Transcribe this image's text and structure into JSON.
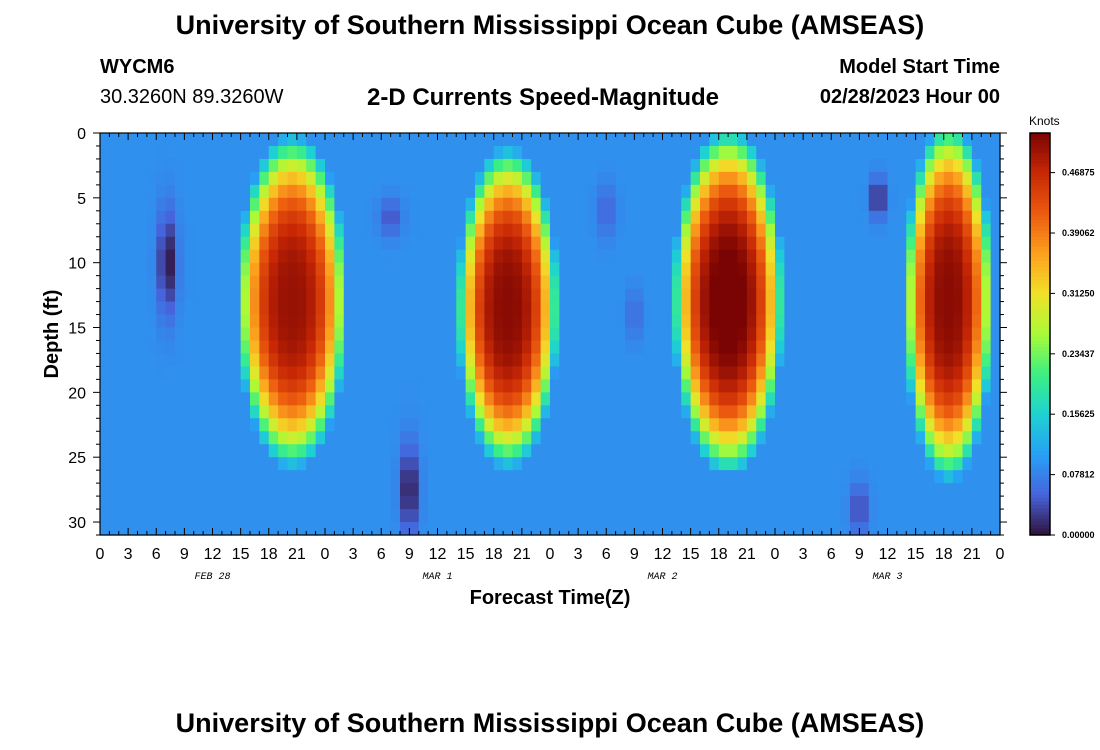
{
  "header": {
    "title": "University of Southern Mississippi Ocean Cube (AMSEAS)",
    "station_id": "WYCM6",
    "coordinates": "30.3260N  89.3260W",
    "start_label": "Model Start Time",
    "start_value": "02/28/2023 Hour 00"
  },
  "footer": {
    "title": "University of Southern Mississippi Ocean Cube (AMSEAS)"
  },
  "chart_data": {
    "type": "heatmap",
    "title": "2-D Currents Speed-Magnitude",
    "xlabel": "Forecast Time(Z)",
    "ylabel": "Depth (ft)",
    "x_hours_range": [
      0,
      96
    ],
    "y_depth_range": [
      0,
      31
    ],
    "x_tick_labels": [
      "0",
      "3",
      "6",
      "9",
      "12",
      "15",
      "18",
      "21",
      "0",
      "3",
      "6",
      "9",
      "12",
      "15",
      "18",
      "21",
      "0",
      "3",
      "6",
      "9",
      "12",
      "15",
      "18",
      "21",
      "0",
      "3",
      "6",
      "9",
      "12",
      "15",
      "18",
      "21",
      "0"
    ],
    "y_tick_values": [
      0,
      5,
      10,
      15,
      20,
      25,
      30
    ],
    "day_labels": [
      {
        "label": "FEB 28",
        "hour": 12
      },
      {
        "label": "MAR 1",
        "hour": 36
      },
      {
        "label": "MAR 2",
        "hour": 60
      },
      {
        "label": "MAR 3",
        "hour": 84
      }
    ],
    "colorbar": {
      "unit": "Knots",
      "min": 0.0,
      "max": 0.52,
      "tick_values": [
        0.0,
        0.078125,
        0.15625,
        0.234375,
        0.3125,
        0.390625,
        0.46875
      ],
      "tick_labels": [
        "0.00000",
        "0.07812",
        "0.15625",
        "0.23437",
        "0.31250",
        "0.39062",
        "0.46875"
      ]
    },
    "grid_resolution": {
      "time_steps": 96,
      "depth_levels": 31
    },
    "background_speed_knots": 0.09,
    "high_speed_blobs": [
      {
        "center_hour": 20.5,
        "center_depth_ft": 13,
        "half_width_hours": 6.0,
        "half_depth_ft": 13,
        "peak_knots": 0.5
      },
      {
        "center_hour": 43.5,
        "center_depth_ft": 13.5,
        "half_width_hours": 5.5,
        "half_depth_ft": 12.5,
        "peak_knots": 0.51
      },
      {
        "center_hour": 67.0,
        "center_depth_ft": 13,
        "half_width_hours": 6.0,
        "half_depth_ft": 13.5,
        "peak_knots": 0.53
      },
      {
        "center_hour": 90.5,
        "center_depth_ft": 13,
        "half_width_hours": 4.8,
        "half_depth_ft": 14,
        "peak_knots": 0.51
      }
    ],
    "low_speed_spots": [
      {
        "center_hour": 7.2,
        "center_depth_ft": 10,
        "half_width_hours": 1.0,
        "half_depth_ft": 4,
        "min_knots": 0.0
      },
      {
        "center_hour": 33.0,
        "center_depth_ft": 27.5,
        "half_width_hours": 1.0,
        "half_depth_ft": 3.5,
        "min_knots": 0.0
      },
      {
        "center_hour": 31.0,
        "center_depth_ft": 6.5,
        "half_width_hours": 1.2,
        "half_depth_ft": 1.5,
        "min_knots": 0.04
      },
      {
        "center_hour": 54.0,
        "center_depth_ft": 6,
        "half_width_hours": 1.0,
        "half_depth_ft": 2,
        "min_knots": 0.05
      },
      {
        "center_hour": 57.0,
        "center_depth_ft": 14,
        "half_width_hours": 0.7,
        "half_depth_ft": 2,
        "min_knots": 0.05
      },
      {
        "center_hour": 83.0,
        "center_depth_ft": 5,
        "half_width_hours": 0.8,
        "half_depth_ft": 1.5,
        "min_knots": 0.0
      },
      {
        "center_hour": 81.0,
        "center_depth_ft": 29,
        "half_width_hours": 1.0,
        "half_depth_ft": 2,
        "min_knots": 0.03
      }
    ]
  }
}
